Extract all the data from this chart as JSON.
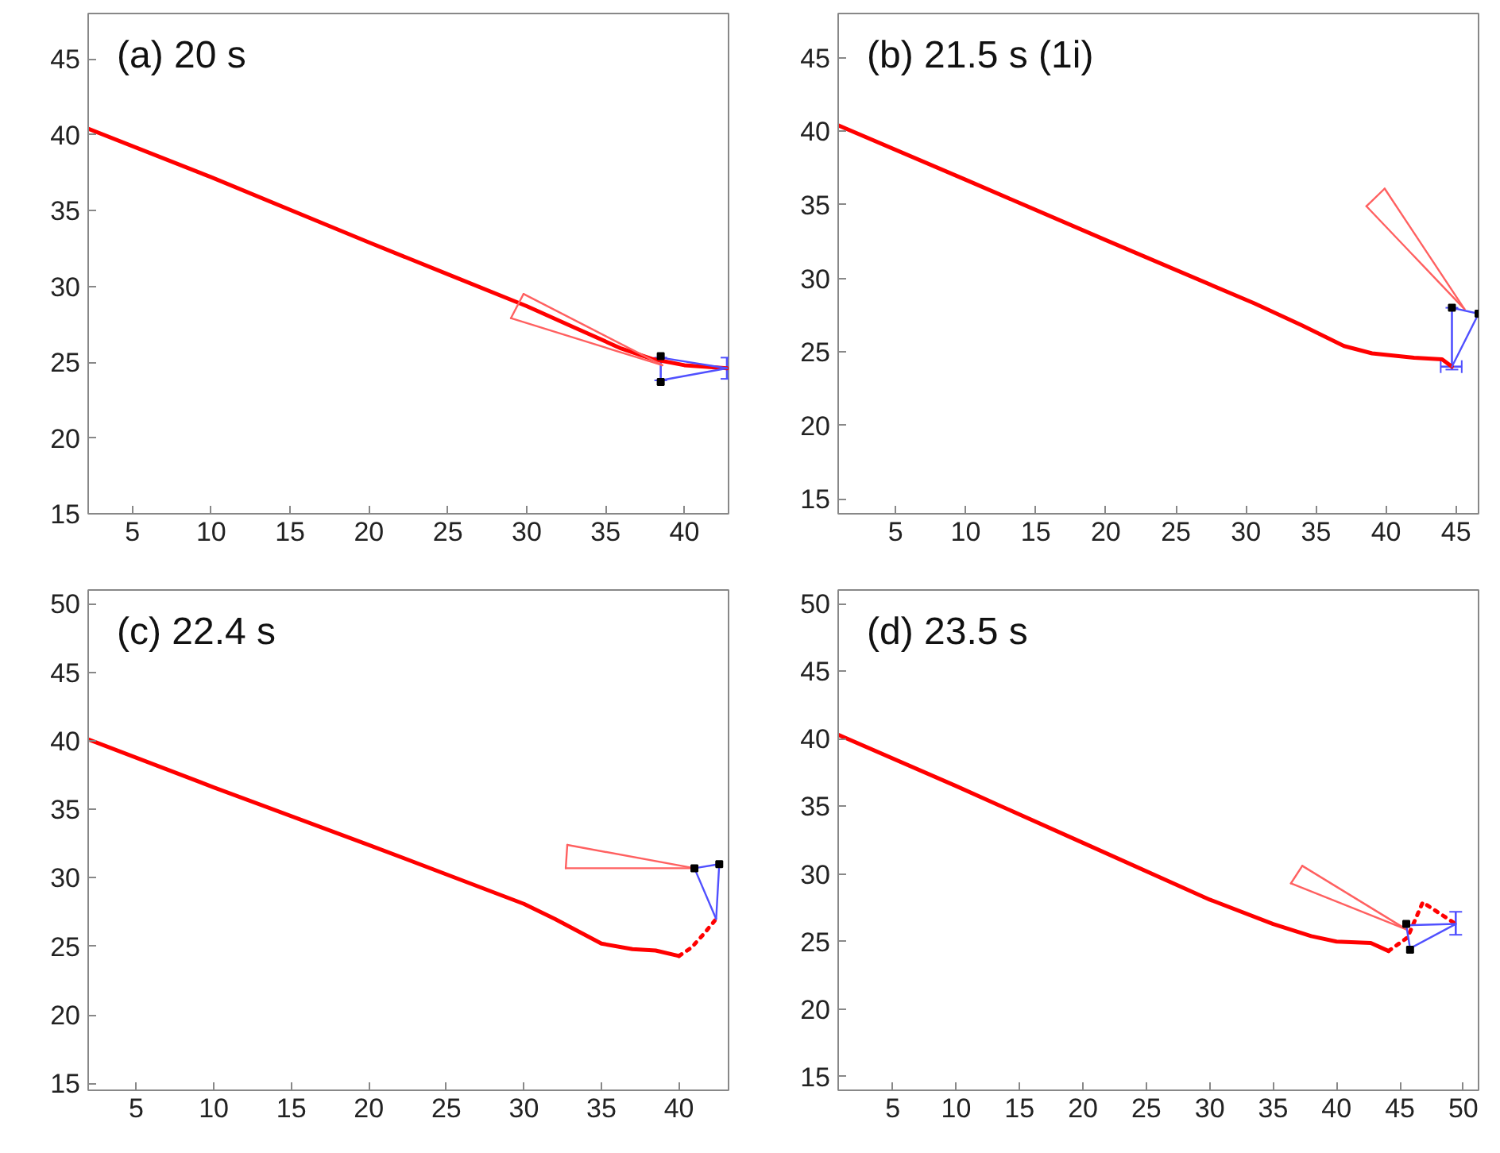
{
  "chart_data": [
    {
      "type": "line",
      "title": "(a) 20 s",
      "xlim": [
        2.2,
        42.8
      ],
      "ylim": [
        15,
        48
      ],
      "xticks": [
        5,
        10,
        15,
        20,
        25,
        30,
        35,
        40
      ],
      "yticks": [
        15,
        20,
        25,
        30,
        35,
        40,
        45
      ],
      "grid": false,
      "series": [
        {
          "color": "#ff0000",
          "x": [
            2.2,
            10,
            20,
            25,
            30,
            33,
            36,
            38,
            40,
            42.7
          ],
          "values": [
            40.4,
            37.2,
            32.9,
            30.8,
            28.7,
            27.3,
            25.9,
            25.2,
            24.8,
            24.6
          ]
        },
        {
          "color": "#ff6060",
          "x": [
            29.8,
            38.6
          ],
          "values": [
            29.5,
            24.8
          ]
        },
        {
          "color": "#ff6060",
          "x": [
            29.0,
            38.6
          ],
          "values": [
            27.9,
            24.8
          ]
        },
        {
          "color": "#ff6060",
          "x": [
            29.0,
            29.8
          ],
          "values": [
            27.9,
            29.5
          ]
        },
        {
          "color": "#5050ff",
          "x": [
            38.5,
            42.7
          ],
          "values": [
            25.3,
            24.6
          ],
          "errors": [
            [
              23.8,
              25.3
            ],
            [
              23.9,
              25.3
            ]
          ]
        },
        {
          "color": "#5050ff",
          "x": [
            38.5,
            42.7
          ],
          "values": [
            23.8,
            24.6
          ]
        },
        {
          "type": "scatter",
          "marker": "square",
          "color": "#000000",
          "x": [
            38.5,
            38.5
          ],
          "values": [
            25.4,
            23.7
          ]
        }
      ]
    },
    {
      "type": "line",
      "title": "(b) 21.5 s (1i)",
      "xlim": [
        0.9,
        46.6
      ],
      "ylim": [
        14,
        48
      ],
      "xticks": [
        5,
        10,
        15,
        20,
        25,
        30,
        35,
        40,
        45
      ],
      "yticks": [
        15,
        20,
        25,
        30,
        35,
        40,
        45
      ],
      "grid": false,
      "series": [
        {
          "color": "#ff0000",
          "x": [
            0.9,
            10,
            20,
            30.6,
            34,
            37,
            39,
            42,
            44,
            44.7
          ],
          "values": [
            40.4,
            36.7,
            32.6,
            28.3,
            26.8,
            25.4,
            24.9,
            24.6,
            24.5,
            24.0
          ]
        },
        {
          "color": "#ff6060",
          "x": [
            39.9,
            45.6
          ],
          "values": [
            36.1,
            27.9
          ]
        },
        {
          "color": "#ff6060",
          "x": [
            38.6,
            45.6
          ],
          "values": [
            34.9,
            27.9
          ]
        },
        {
          "color": "#ff6060",
          "x": [
            38.6,
            39.9
          ],
          "values": [
            34.9,
            36.1
          ]
        },
        {
          "color": "#5050ff",
          "x": [
            44.7,
            46.6
          ],
          "values": [
            28.0,
            27.6
          ]
        },
        {
          "color": "#5050ff",
          "x": [
            44.7,
            46.6
          ],
          "values": [
            24.0,
            27.6
          ],
          "errors": [
            [
              23.8,
              28.0
            ],
            null
          ],
          "xerrors": [
            [
              43.9,
              45.4
            ],
            null
          ]
        },
        {
          "type": "scatter",
          "marker": "square",
          "color": "#000000",
          "x": [
            44.7,
            46.6
          ],
          "values": [
            28.0,
            27.6
          ]
        }
      ]
    },
    {
      "type": "line",
      "title": "(c) 22.4 s",
      "xlim": [
        1.9,
        43.2
      ],
      "ylim": [
        14.5,
        51
      ],
      "xticks": [
        5,
        10,
        15,
        20,
        25,
        30,
        35,
        40
      ],
      "yticks": [
        15,
        20,
        25,
        30,
        35,
        40,
        45,
        50
      ],
      "grid": false,
      "series": [
        {
          "color": "#ff0000",
          "x": [
            1.9,
            10,
            20,
            30,
            32,
            35,
            37,
            38.5,
            40.0
          ],
          "values": [
            40.1,
            36.6,
            32.4,
            28.1,
            27.0,
            25.2,
            24.8,
            24.7,
            24.3
          ]
        },
        {
          "color": "#ff0000",
          "line_style": "dotted",
          "x": [
            40.0,
            40.8,
            41.6,
            42.4
          ],
          "values": [
            24.3,
            24.9,
            25.9,
            27.0
          ]
        },
        {
          "color": "#ff6060",
          "x": [
            32.8,
            41.0
          ],
          "values": [
            32.4,
            30.7
          ]
        },
        {
          "color": "#ff6060",
          "x": [
            32.7,
            41.0
          ],
          "values": [
            30.7,
            30.7
          ]
        },
        {
          "color": "#ff6060",
          "x": [
            32.7,
            32.8
          ],
          "values": [
            30.7,
            32.4
          ]
        },
        {
          "color": "#5050ff",
          "x": [
            41.0,
            42.6
          ],
          "values": [
            30.7,
            31.0
          ]
        },
        {
          "color": "#5050ff",
          "x": [
            41.0,
            42.4
          ],
          "values": [
            30.7,
            27.0
          ]
        },
        {
          "color": "#5050ff",
          "x": [
            42.4,
            42.6
          ],
          "values": [
            27.0,
            31.0
          ]
        },
        {
          "type": "scatter",
          "marker": "square",
          "color": "#000000",
          "x": [
            41.0,
            42.6
          ],
          "values": [
            30.7,
            31.0
          ]
        }
      ]
    },
    {
      "type": "line",
      "title": "(d) 23.5 s",
      "xlim": [
        0.7,
        51.2
      ],
      "ylim": [
        14,
        51
      ],
      "xticks": [
        5,
        10,
        15,
        20,
        25,
        30,
        35,
        40,
        45,
        50
      ],
      "yticks": [
        15,
        20,
        25,
        30,
        35,
        40,
        45,
        50
      ],
      "grid": false,
      "series": [
        {
          "color": "#ff0000",
          "x": [
            0.7,
            10,
            20,
            30,
            35,
            38,
            40,
            42.7,
            44.1
          ],
          "values": [
            40.3,
            36.5,
            32.3,
            28.1,
            26.3,
            25.4,
            25.0,
            24.9,
            24.3
          ]
        },
        {
          "color": "#ff0000",
          "line_style": "dotted",
          "x": [
            44.1,
            45.6,
            46.8,
            49.4
          ],
          "values": [
            24.3,
            25.3,
            27.9,
            26.3
          ]
        },
        {
          "color": "#ff6060",
          "x": [
            37.3,
            45.5
          ],
          "values": [
            30.6,
            25.9
          ]
        },
        {
          "color": "#ff6060",
          "x": [
            36.4,
            45.5
          ],
          "values": [
            29.3,
            25.9
          ]
        },
        {
          "color": "#ff6060",
          "x": [
            36.4,
            37.3
          ],
          "values": [
            29.3,
            30.6
          ]
        },
        {
          "color": "#5050ff",
          "x": [
            45.5,
            49.4
          ],
          "values": [
            26.2,
            26.3
          ]
        },
        {
          "color": "#5050ff",
          "x": [
            45.8,
            49.4
          ],
          "values": [
            24.5,
            26.3
          ],
          "errors": [
            null,
            [
              25.5,
              27.2
            ]
          ]
        },
        {
          "color": "#5050ff",
          "x": [
            45.5,
            45.8
          ],
          "values": [
            26.2,
            24.5
          ]
        },
        {
          "type": "scatter",
          "marker": "square",
          "color": "#000000",
          "x": [
            45.5,
            45.8
          ],
          "values": [
            26.3,
            24.4
          ]
        }
      ]
    }
  ]
}
